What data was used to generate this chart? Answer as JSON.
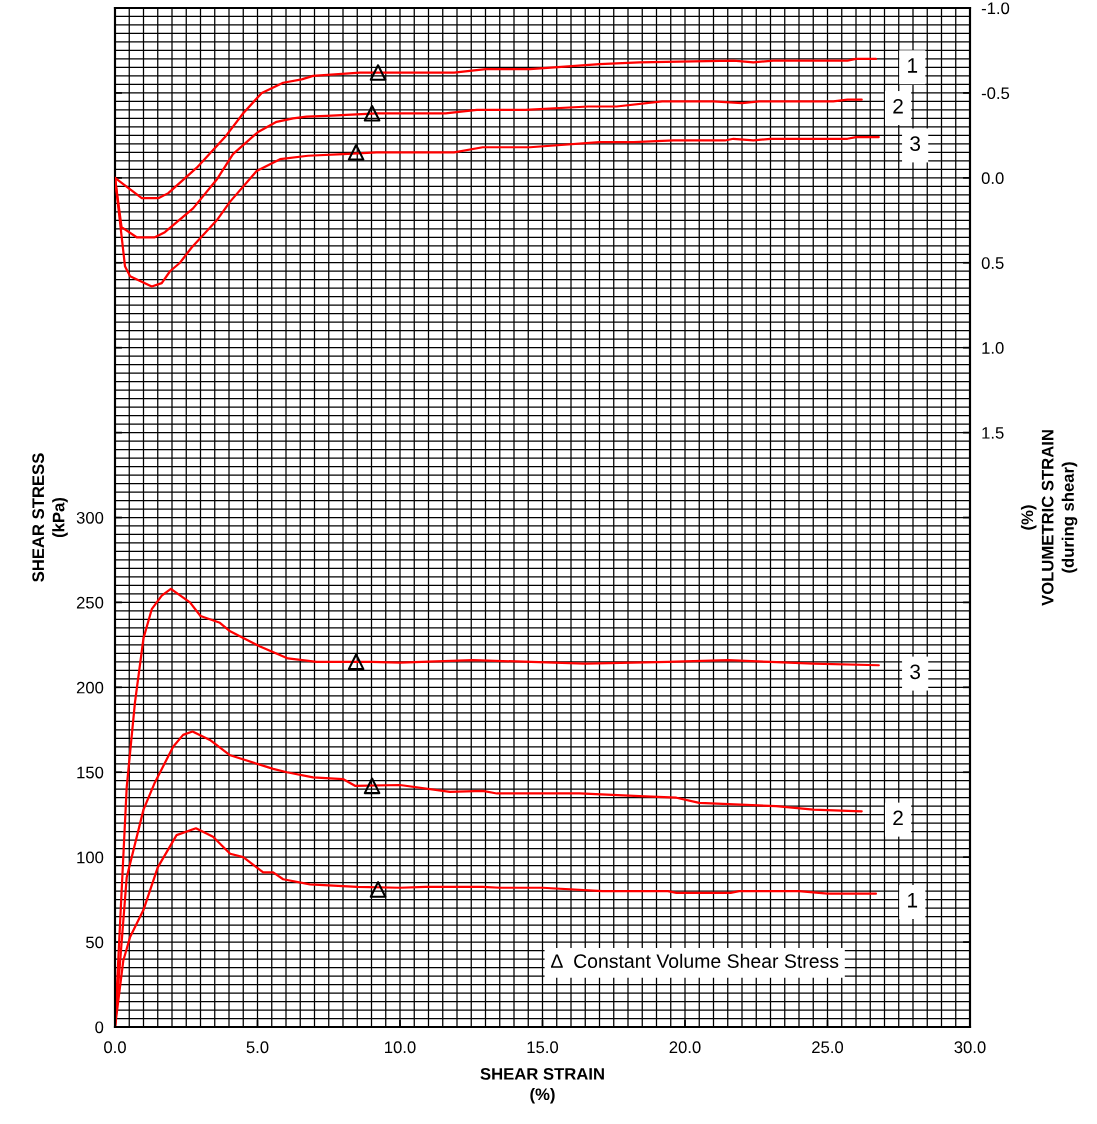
{
  "chart_data": {
    "type": "line",
    "xlabel": "SHEAR STRAIN\n(%)",
    "ylabel": "SHEAR STRESS\n(kPa)",
    "y2label": "(%)\nVOLUMETRIC STRAIN\n(during shear)",
    "xlim": [
      0,
      30
    ],
    "xticks": [
      {
        "value": 0,
        "label": "0.0"
      },
      {
        "value": 5,
        "label": "5.0"
      },
      {
        "value": 10,
        "label": "10.0"
      },
      {
        "value": 15,
        "label": "15.0"
      },
      {
        "value": 20,
        "label": "20.0"
      },
      {
        "value": 25,
        "label": "25.0"
      },
      {
        "value": 30,
        "label": "30.0"
      }
    ],
    "ylim": [
      0,
      600
    ],
    "yticks": [
      0,
      50,
      100,
      150,
      200,
      250,
      300,
      {
        "value": 350,
        "label": null
      },
      {
        "value": 400,
        "label": null
      },
      {
        "value": 450,
        "label": null
      },
      {
        "value": 500,
        "label": null
      },
      {
        "value": 550,
        "label": null
      },
      {
        "value": 600,
        "label": null
      }
    ],
    "y2lim": [
      5.0,
      -1.0
    ],
    "y2ticks": [
      {
        "value": -1.0,
        "label": "-1.0"
      },
      {
        "value": -0.5,
        "label": "-0.5"
      },
      {
        "value": 0.0,
        "label": "0.0"
      },
      {
        "value": 0.5,
        "label": "0.5"
      },
      {
        "value": 1.0,
        "label": "1.0"
      },
      {
        "value": 1.5,
        "label": "1.5"
      },
      {
        "value": 2.0,
        "label": null
      },
      {
        "value": 2.5,
        "label": null
      },
      {
        "value": 3.0,
        "label": null
      },
      {
        "value": 3.5,
        "label": null
      },
      {
        "value": 4.0,
        "label": null
      },
      {
        "value": 4.5,
        "label": null
      },
      {
        "value": 5.0,
        "label": null
      }
    ],
    "grid": true,
    "marker": "none",
    "line_style": "solid",
    "annotations": [
      "Δ  Constant Volume Shear Stress"
    ],
    "series": [
      {
        "name": "1",
        "color": "#ff0000",
        "x": [
          0,
          0.29,
          0.53,
          1.0,
          1.5,
          2.16,
          2.84,
          3.44,
          4.04,
          4.5,
          5.2,
          5.55,
          5.9,
          6.84,
          8.49,
          10.0,
          10.9,
          12.9,
          13.5,
          15.0,
          17.1,
          19.4,
          19.7,
          21.6,
          21.9,
          24.0,
          25.0,
          26.7
        ],
        "values": [
          0,
          39,
          53,
          69,
          94,
          113,
          117,
          112,
          102,
          100,
          91,
          91,
          87,
          84,
          82.5,
          82,
          82.5,
          82.5,
          82,
          82,
          80,
          80,
          79,
          79,
          80,
          80,
          78.5,
          78.5
        ]
      },
      {
        "name": "2",
        "color": "#ff0000",
        "x": [
          0,
          0.41,
          1.0,
          1.4,
          2.04,
          2.39,
          2.72,
          3.33,
          4.04,
          5.55,
          6.03,
          6.95,
          8.0,
          8.42,
          10.0,
          11.75,
          12.9,
          13.4,
          16.3,
          18.4,
          19.7,
          20.5,
          23.2,
          24.5,
          26.2
        ],
        "values": [
          0,
          88,
          128,
          144,
          165,
          172,
          174,
          169,
          160,
          152,
          150,
          147,
          146,
          142,
          142.5,
          138.5,
          139,
          137.5,
          137.5,
          136,
          135,
          132,
          130,
          128,
          127
        ]
      },
      {
        "name": "3",
        "color": "#ff0000",
        "x": [
          0,
          0.41,
          0.7,
          1.0,
          1.29,
          1.64,
          1.96,
          2.63,
          3.0,
          3.68,
          4.04,
          5.09,
          6.07,
          7.08,
          9.0,
          10.0,
          12.56,
          16.5,
          19.4,
          21.5,
          23.0,
          24.5,
          26.8
        ],
        "values": [
          0,
          141,
          191,
          229,
          246,
          254,
          258,
          250,
          242,
          238,
          233,
          224,
          217,
          215,
          215,
          214.5,
          216,
          214,
          215,
          216,
          215,
          214,
          213
        ]
      },
      {
        "name": "1",
        "color": "#ff0000",
        "axis": "y2",
        "x": [
          0,
          0.94,
          1.52,
          1.87,
          2.87,
          3.86,
          4.5,
          5.15,
          5.9,
          6.55,
          6.95,
          8.6,
          10.0,
          11.9,
          13.0,
          14.56,
          17.0,
          18.4,
          21.7,
          22.4,
          23.1,
          25.7,
          26.0,
          26.7
        ],
        "values": [
          0,
          0.12,
          0.12,
          0.09,
          -0.06,
          -0.24,
          -0.38,
          -0.5,
          -0.56,
          -0.58,
          -0.6,
          -0.62,
          -0.62,
          -0.62,
          -0.64,
          -0.64,
          -0.67,
          -0.68,
          -0.69,
          -0.68,
          -0.69,
          -0.69,
          -0.7,
          -0.7
        ]
      },
      {
        "name": "2",
        "color": "#ff0000",
        "axis": "y2",
        "x": [
          0,
          0.23,
          0.76,
          1.4,
          1.75,
          2.74,
          3.57,
          4.14,
          5.02,
          5.67,
          6.25,
          6.72,
          7.42,
          9.18,
          10.0,
          11.6,
          12.7,
          14.4,
          16.6,
          17.6,
          19.2,
          21.0,
          22.0,
          22.6,
          25.2,
          25.7,
          26.2
        ],
        "values": [
          0,
          0.29,
          0.35,
          0.35,
          0.32,
          0.18,
          0.01,
          -0.14,
          -0.27,
          -0.33,
          -0.35,
          -0.36,
          -0.365,
          -0.38,
          -0.38,
          -0.38,
          -0.4,
          -0.4,
          -0.42,
          -0.42,
          -0.45,
          -0.45,
          -0.44,
          -0.45,
          -0.45,
          -0.46,
          -0.46
        ]
      },
      {
        "name": "3",
        "color": "#ff0000",
        "axis": "y2",
        "x": [
          0,
          0.35,
          0.53,
          1.29,
          1.64,
          1.93,
          2.28,
          2.69,
          3.57,
          4.04,
          4.97,
          5.79,
          6.77,
          8.0,
          9.18,
          10.0,
          11.9,
          12.9,
          14.56,
          17.0,
          18.2,
          19.6,
          21.4,
          21.7,
          22.4,
          23.0,
          25.7,
          26.0,
          26.8
        ],
        "values": [
          0,
          0.52,
          0.58,
          0.64,
          0.62,
          0.55,
          0.5,
          0.41,
          0.25,
          0.14,
          -0.04,
          -0.11,
          -0.13,
          -0.14,
          -0.15,
          -0.15,
          -0.15,
          -0.18,
          -0.18,
          -0.21,
          -0.21,
          -0.22,
          -0.22,
          -0.23,
          -0.22,
          -0.23,
          -0.23,
          -0.24,
          -0.24
        ]
      },
      {
        "type": "scatter",
        "marker": "triangle",
        "color": "#000000",
        "x": [
          8.46,
          9.02,
          9.23
        ],
        "values": [
          215,
          142,
          81
        ]
      },
      {
        "type": "scatter",
        "marker": "triangle",
        "color": "#000000",
        "axis": "y2",
        "x": [
          8.46,
          9.02,
          9.23
        ],
        "values": [
          -0.15,
          -0.38,
          -0.62
        ]
      }
    ]
  }
}
